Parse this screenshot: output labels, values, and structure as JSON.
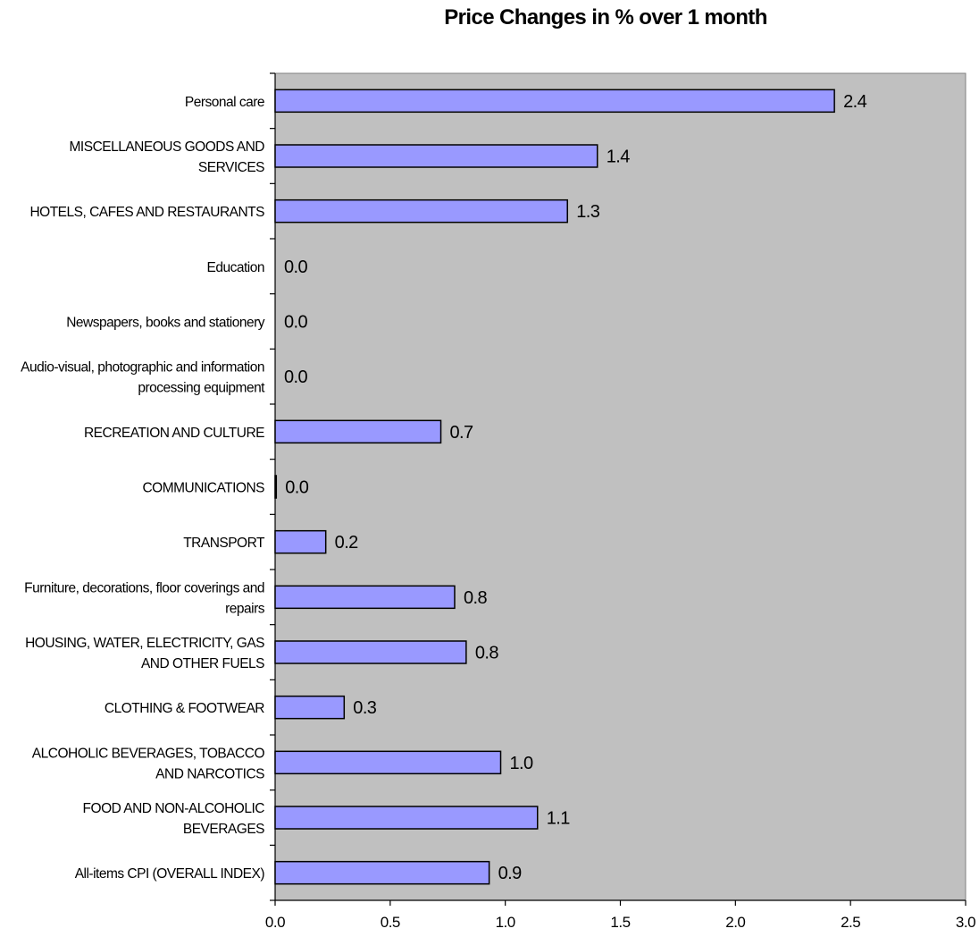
{
  "chart_data": {
    "type": "bar",
    "orientation": "horizontal",
    "title": "Price Changes in %  over 1 month",
    "xlabel": "",
    "ylabel": "",
    "xlim": [
      0,
      3.0
    ],
    "ticks": [
      "0.0",
      "0.5",
      "1.0",
      "1.5",
      "2.0",
      "2.5",
      "3.0"
    ],
    "tick_values": [
      0,
      0.5,
      1.0,
      1.5,
      2.0,
      2.5,
      3.0
    ],
    "grid": false,
    "legend": "none",
    "plot_background": "#c0c0c0",
    "bar_color": "#9999ff",
    "categories": [
      [
        "Personal care"
      ],
      [
        "MISCELLANEOUS GOODS AND",
        "SERVICES"
      ],
      [
        "HOTELS, CAFES AND RESTAURANTS"
      ],
      [
        "Education"
      ],
      [
        "Newspapers, books and stationery"
      ],
      [
        "Audio-visual, photographic and information",
        "processing equipment"
      ],
      [
        "RECREATION AND CULTURE"
      ],
      [
        "COMMUNICATIONS"
      ],
      [
        "TRANSPORT"
      ],
      [
        "Furniture, decorations, floor coverings and",
        "repairs"
      ],
      [
        "HOUSING, WATER, ELECTRICITY, GAS",
        "AND OTHER FUELS"
      ],
      [
        "CLOTHING & FOOTWEAR"
      ],
      [
        "ALCOHOLIC BEVERAGES, TOBACCO",
        "AND NARCOTICS"
      ],
      [
        "FOOD AND NON-ALCOHOLIC",
        "BEVERAGES"
      ],
      [
        "All-items CPI (OVERALL INDEX)"
      ]
    ],
    "values": [
      2.43,
      1.4,
      1.27,
      0.0,
      0.0,
      0.0,
      0.72,
      0.005,
      0.22,
      0.78,
      0.83,
      0.3,
      0.98,
      1.14,
      0.93
    ],
    "data_labels": [
      "2.4",
      "1.4",
      "1.3",
      "0.0",
      "0.0",
      "0.0",
      "0.7",
      "0.0",
      "0.2",
      "0.8",
      "0.8",
      "0.3",
      "1.0",
      "1.1",
      "0.9"
    ]
  }
}
